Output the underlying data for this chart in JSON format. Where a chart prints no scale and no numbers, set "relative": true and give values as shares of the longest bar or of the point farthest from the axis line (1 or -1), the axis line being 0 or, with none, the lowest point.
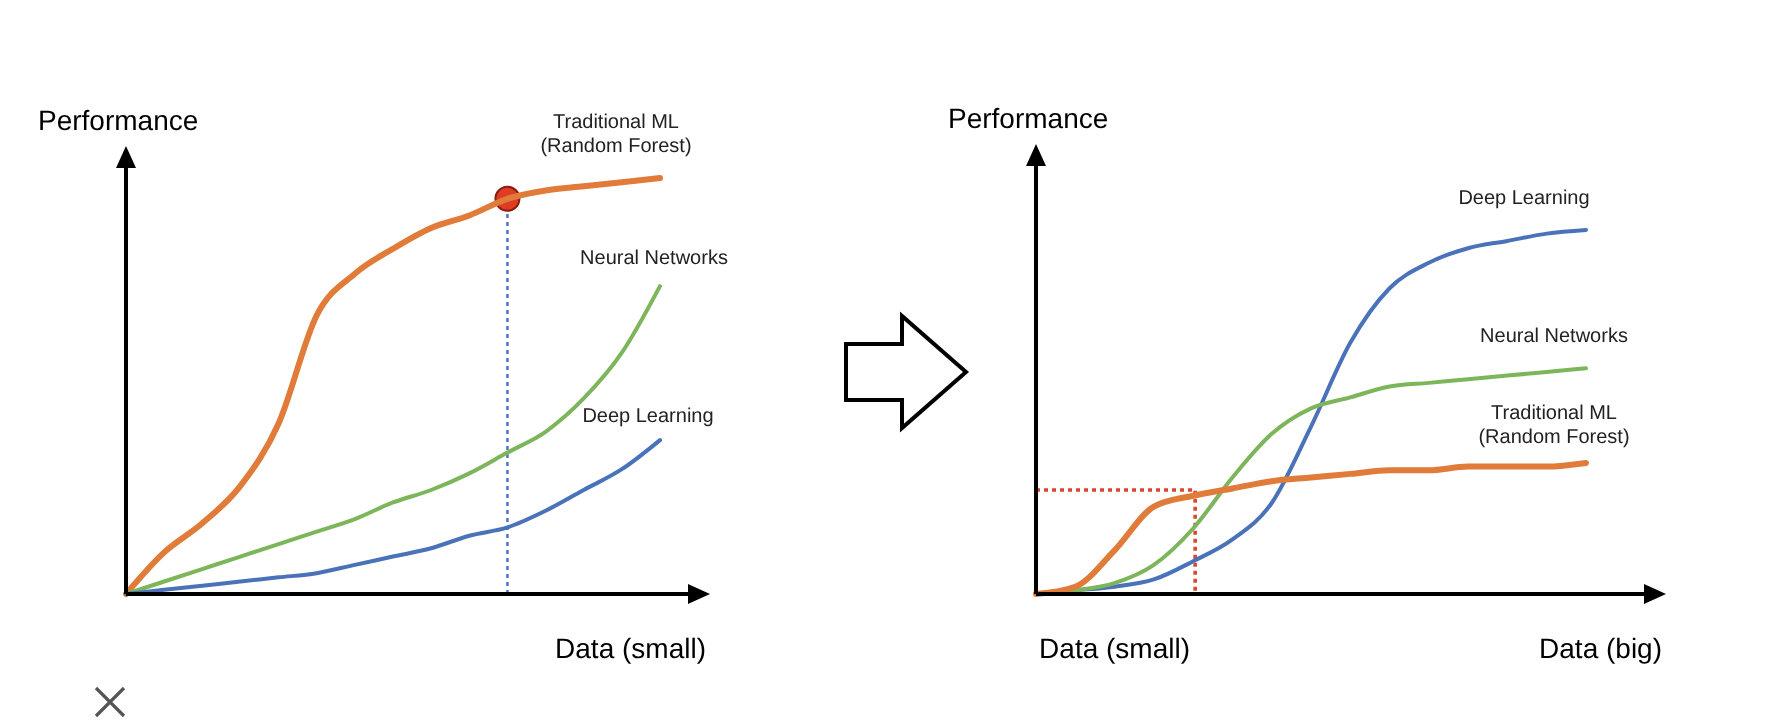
{
  "chart_data": [
    {
      "type": "line",
      "relative": true,
      "ylabel": "Performance",
      "xlabel": "Data (small)",
      "categories": [
        null,
        null,
        null,
        null,
        null,
        null,
        null,
        null,
        null,
        null,
        null,
        null,
        null,
        null,
        null
      ],
      "legend": false,
      "grid": false,
      "marker": "none",
      "series": [
        {
          "name": "Traditional ML (Random Forest)",
          "color": "#e07b39",
          "values": [
            0,
            0.1,
            0.17,
            0.26,
            0.41,
            0.67,
            0.77,
            0.83,
            0.88,
            0.91,
            0.95,
            0.97,
            0.98,
            0.99,
            1
          ]
        },
        {
          "name": "Neural Networks",
          "color": "#7cb55a",
          "values": [
            0,
            0.03,
            0.06,
            0.09,
            0.12,
            0.15,
            0.18,
            0.22,
            0.25,
            0.29,
            0.34,
            0.39,
            0.47,
            0.58,
            0.74
          ]
        },
        {
          "name": "Deep Learning",
          "color": "#4a72b8",
          "values": [
            0,
            0.01,
            0.02,
            0.03,
            0.04,
            0.05,
            0.07,
            0.09,
            0.11,
            0.14,
            0.16,
            0.2,
            0.25,
            0.3,
            0.37
          ]
        }
      ]
    },
    {
      "type": "line",
      "relative": true,
      "ylabel": "Performance",
      "xlabel": "Data (big)",
      "annotations": [
        "Data (small)"
      ],
      "categories": [
        null,
        null,
        null,
        null,
        null,
        null,
        null,
        null,
        null,
        null,
        null,
        null,
        null,
        null,
        null
      ],
      "legend": false,
      "grid": false,
      "marker": "none",
      "series": [
        {
          "name": "Deep Learning",
          "color": "#4a72b8",
          "values": [
            0,
            0.01,
            0.02,
            0.04,
            0.09,
            0.15,
            0.25,
            0.46,
            0.69,
            0.84,
            0.91,
            0.95,
            0.97,
            0.99,
            1
          ]
        },
        {
          "name": "Neural Networks",
          "color": "#7cb55a",
          "values": [
            0,
            0.01,
            0.03,
            0.08,
            0.18,
            0.32,
            0.44,
            0.51,
            0.54,
            0.57,
            0.58,
            0.59,
            0.6,
            0.61,
            0.62
          ]
        },
        {
          "name": "Traditional ML (Random Forest)",
          "color": "#e07b39",
          "values": [
            0,
            0.02,
            0.12,
            0.24,
            0.27,
            0.29,
            0.31,
            0.32,
            0.33,
            0.34,
            0.34,
            0.35,
            0.35,
            0.35,
            0.36
          ]
        }
      ]
    }
  ]
}
